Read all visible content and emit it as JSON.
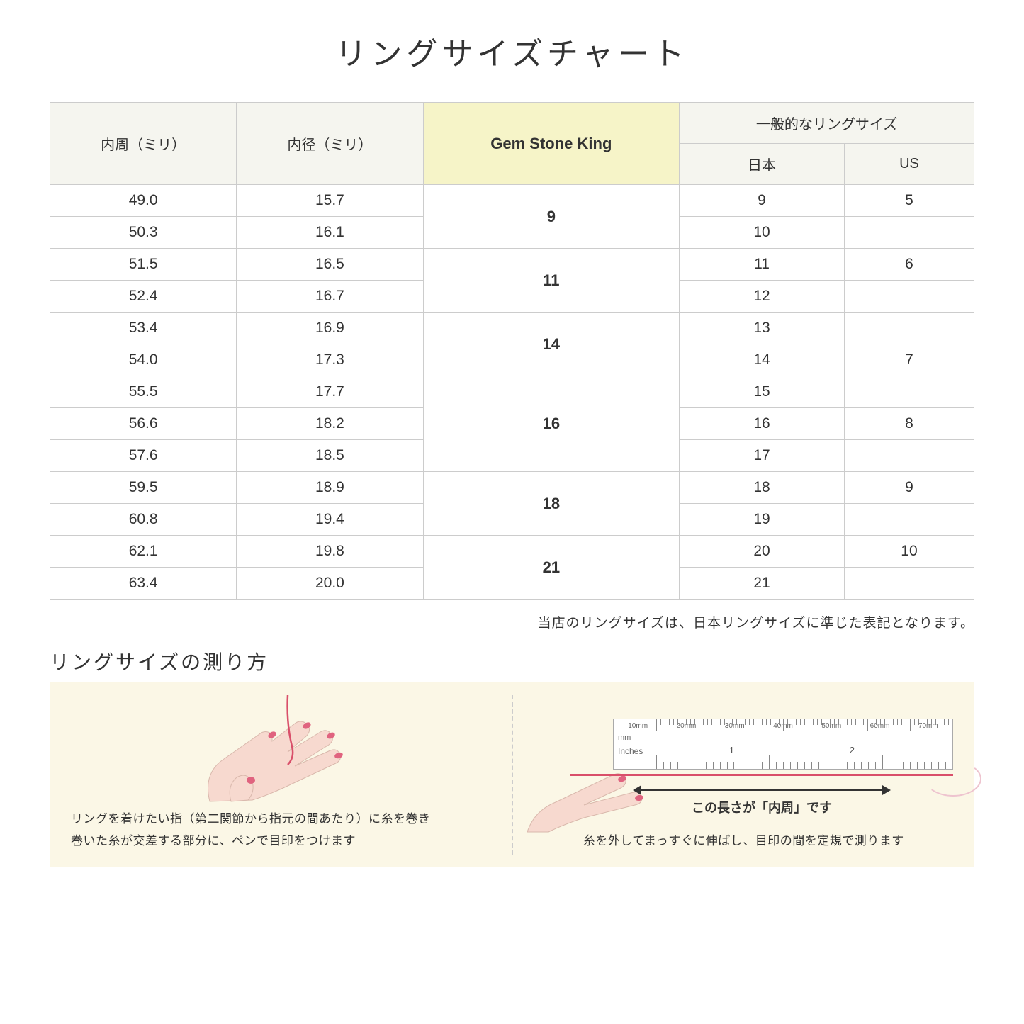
{
  "title": "リングサイズチャート",
  "table": {
    "headers": {
      "circumference": "内周（ミリ）",
      "diameter": "内径（ミリ）",
      "gsk": "Gem Stone King",
      "general": "一般的なリングサイズ",
      "japan": "日本",
      "us": "US"
    },
    "highlight_bg": "#f6f4c8",
    "header_bg": "#f5f5ef",
    "border_color": "#cccccc",
    "groups": [
      {
        "gsk": "9",
        "rows": [
          {
            "c": "49.0",
            "d": "15.7",
            "jp": "9",
            "us": "5"
          },
          {
            "c": "50.3",
            "d": "16.1",
            "jp": "10",
            "us": ""
          }
        ]
      },
      {
        "gsk": "11",
        "rows": [
          {
            "c": "51.5",
            "d": "16.5",
            "jp": "11",
            "us": "6"
          },
          {
            "c": "52.4",
            "d": "16.7",
            "jp": "12",
            "us": ""
          }
        ]
      },
      {
        "gsk": "14",
        "rows": [
          {
            "c": "53.4",
            "d": "16.9",
            "jp": "13",
            "us": ""
          },
          {
            "c": "54.0",
            "d": "17.3",
            "jp": "14",
            "us": "7"
          }
        ]
      },
      {
        "gsk": "16",
        "rows": [
          {
            "c": "55.5",
            "d": "17.7",
            "jp": "15",
            "us": ""
          },
          {
            "c": "56.6",
            "d": "18.2",
            "jp": "16",
            "us": "8"
          },
          {
            "c": "57.6",
            "d": "18.5",
            "jp": "17",
            "us": ""
          }
        ]
      },
      {
        "gsk": "18",
        "rows": [
          {
            "c": "59.5",
            "d": "18.9",
            "jp": "18",
            "us": "9"
          },
          {
            "c": "60.8",
            "d": "19.4",
            "jp": "19",
            "us": ""
          }
        ]
      },
      {
        "gsk": "21",
        "rows": [
          {
            "c": "62.1",
            "d": "19.8",
            "jp": "20",
            "us": "10"
          },
          {
            "c": "63.4",
            "d": "20.0",
            "jp": "21",
            "us": ""
          }
        ]
      }
    ]
  },
  "note": "当店のリングサイズは、日本リングサイズに準じた表記となります。",
  "howto": {
    "heading": "リングサイズの測り方",
    "bg": "#fbf7e6",
    "left_text_1": "リングを着けたい指（第二関節から指元の間あたり）に糸を巻き",
    "left_text_2": "巻いた糸が交差する部分に、ペンで目印をつけます",
    "right_measure_label": "この長さが「内周」です",
    "right_text": "糸を外してまっすぐに伸ばし、目印の間を定規で測ります",
    "ruler_mm_labels": [
      "10mm",
      "20mm",
      "30mm",
      "40mm",
      "50mm",
      "60mm",
      "70mm"
    ],
    "ruler_unit_mm": "mm",
    "ruler_unit_in": "Inches",
    "ruler_inch_labels": [
      "1",
      "2"
    ],
    "thread_color": "#d94f6a",
    "skin_color": "#f7d9cf",
    "nail_color": "#e0637f"
  }
}
